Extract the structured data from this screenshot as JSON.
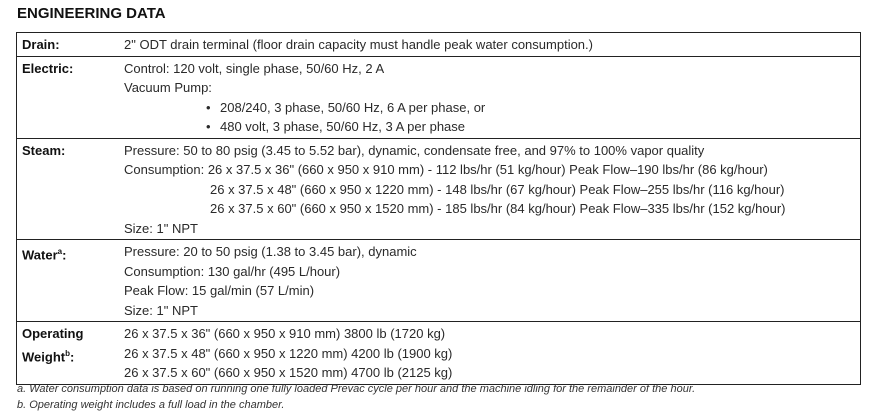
{
  "title": "ENGINEERING DATA",
  "rows": {
    "drain": {
      "label": "Drain:",
      "lines": [
        "2\" ODT drain terminal (floor drain capacity must handle peak water consumption.)"
      ]
    },
    "electric": {
      "label": "Electric:",
      "control": "Control: 120 volt, single phase, 50/60 Hz, 2 A",
      "vacuum": "Vacuum Pump:",
      "bullets": [
        "208/240, 3 phase, 50/60 Hz, 6 A per phase, or",
        "480 volt, 3 phase, 50/60 Hz, 3 A per phase"
      ]
    },
    "steam": {
      "label": "Steam:",
      "pressure": "Pressure: 50 to 80 psig (3.45 to 5.52 bar), dynamic, condensate free, and 97% to 100% vapor quality",
      "consumption": [
        "Consumption: 26 x 37.5 x 36\" (660 x 950 x 910 mm) - 112 lbs/hr (51 kg/hour) Peak Flow–190 lbs/hr (86 kg/hour)",
        "26 x 37.5 x 48\" (660 x 950 x 1220 mm) - 148 lbs/hr (67 kg/hour) Peak Flow–255 lbs/hr (116 kg/hour)",
        "26 x 37.5 x 60\" (660 x 950 x 1520 mm) - 185 lbs/hr (84 kg/hour) Peak Flow–335 lbs/hr (152 kg/hour)"
      ],
      "size": "Size: 1\" NPT"
    },
    "water": {
      "label": "Water",
      "sup": "a",
      "colon": ":",
      "lines": [
        "Pressure: 20 to 50 psig (1.38 to 3.45 bar), dynamic",
        "Consumption: 130 gal/hr (495 L/hour)",
        "Peak Flow: 15 gal/min (57 L/min)",
        "Size: 1\" NPT"
      ]
    },
    "weight": {
      "label1": "Operating",
      "label2": "Weight",
      "sup": "b",
      "colon": ":",
      "lines": [
        "26 x 37.5 x 36\" (660 x 950 x 910 mm) 3800 lb (1720 kg)",
        "26 x 37.5 x 48\" (660 x 950 x 1220 mm) 4200 lb (1900 kg)",
        "26 x 37.5 x 60\" (660 x 950 x 1520 mm) 4700 lb (2125 kg)"
      ]
    }
  },
  "footnotes": [
    "a. Water consumption data is based on running one fully loaded Prevac cycle per hour and the machine idling for the remainder of the hour.",
    "b. Operating weight includes a full load in the chamber."
  ]
}
